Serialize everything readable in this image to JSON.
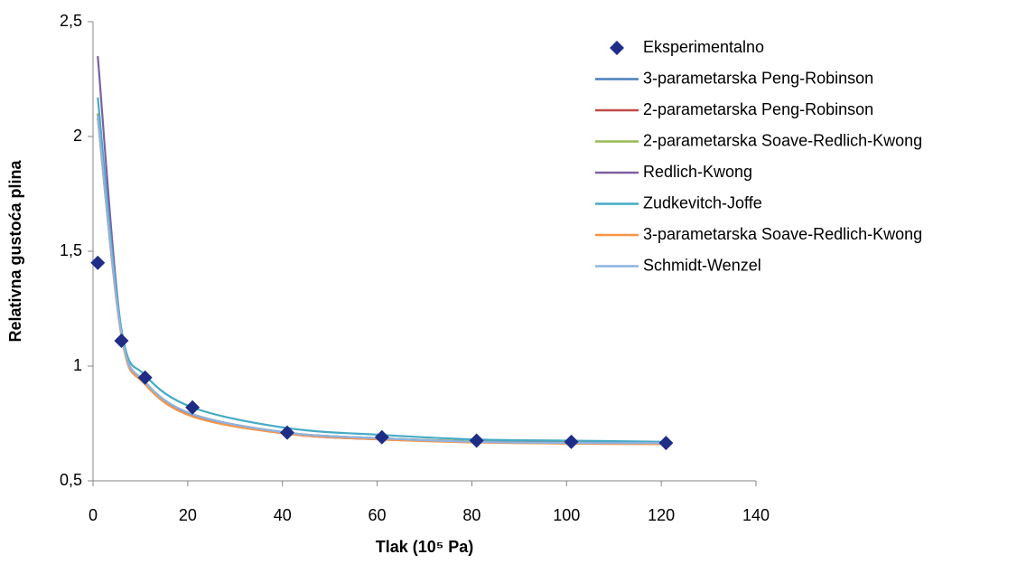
{
  "chart_data": {
    "type": "line",
    "xlabel": "Tlak (10⁵ Pa)",
    "ylabel": "Relativna gustoća plina",
    "x": [
      1,
      6,
      11,
      21,
      41,
      61,
      81,
      101,
      121
    ],
    "series": [
      {
        "name": "Eksperimentalno",
        "color": "#1f2d86",
        "marker": "diamond",
        "values": [
          1.45,
          1.11,
          0.95,
          0.82,
          0.71,
          0.69,
          0.675,
          0.67,
          0.665
        ]
      },
      {
        "name": "3-parametarska Peng-Robinson",
        "color": "#4a7ebb",
        "values": [
          2.08,
          1.14,
          0.93,
          0.79,
          0.71,
          0.685,
          0.67,
          0.665,
          0.665
        ]
      },
      {
        "name": "2-parametarska Peng-Robinson",
        "color": "#be4b48",
        "values": [
          2.1,
          1.14,
          0.93,
          0.79,
          0.71,
          0.685,
          0.672,
          0.667,
          0.665
        ]
      },
      {
        "name": "2-parametarska Soave-Redlich-Kwong",
        "color": "#98b954",
        "values": [
          2.1,
          1.14,
          0.93,
          0.79,
          0.71,
          0.685,
          0.672,
          0.667,
          0.665
        ]
      },
      {
        "name": "Redlich-Kwong",
        "color": "#7d60a0",
        "values": [
          2.35,
          1.15,
          0.93,
          0.785,
          0.705,
          0.68,
          0.67,
          0.665,
          0.665
        ]
      },
      {
        "name": "Zudkevitch-Joffe",
        "color": "#46aac5",
        "values": [
          2.17,
          1.16,
          0.96,
          0.82,
          0.73,
          0.7,
          0.68,
          0.675,
          0.67
        ]
      },
      {
        "name": "3-parametarska Soave-Redlich-Kwong",
        "color": "#f79646",
        "values": [
          2.08,
          1.13,
          0.92,
          0.78,
          0.705,
          0.68,
          0.667,
          0.662,
          0.66
        ]
      },
      {
        "name": "Schmidt-Wenzel",
        "color": "#8eb4e3",
        "values": [
          2.09,
          1.14,
          0.93,
          0.79,
          0.71,
          0.685,
          0.67,
          0.665,
          0.665
        ]
      }
    ],
    "xlim": [
      0,
      140
    ],
    "xticks": [
      0,
      20,
      40,
      60,
      80,
      100,
      120,
      140
    ],
    "ylim": [
      0.5,
      2.5
    ],
    "yticks": [
      {
        "value": 0.5,
        "label": "0,5"
      },
      1,
      {
        "value": 1.5,
        "label": "1,5"
      },
      2,
      {
        "value": 2.5,
        "label": "2,5"
      }
    ],
    "legend": "right"
  }
}
